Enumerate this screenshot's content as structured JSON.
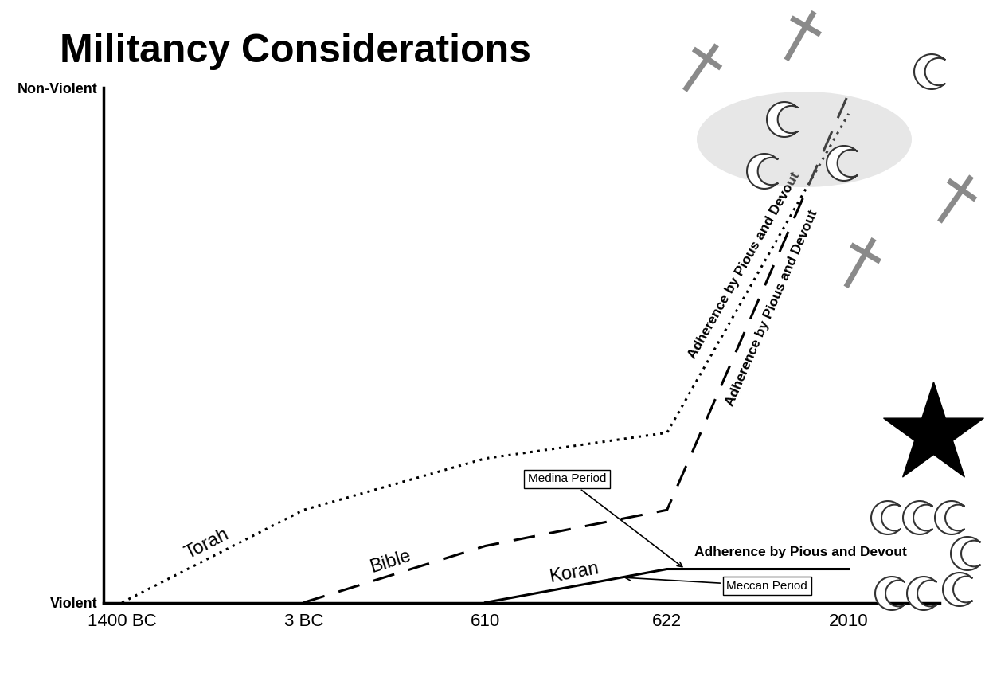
{
  "chart_data": {
    "type": "line",
    "title": "Militancy Considerations",
    "categories": [
      "1400 BC",
      "3 BC",
      "610",
      "622",
      "2010"
    ],
    "ylim": [
      0,
      10
    ],
    "yticks": [
      {
        "value": 0,
        "label": "Violent"
      },
      {
        "value": 10,
        "label": "Non-Violent"
      }
    ],
    "grid": false,
    "series": [
      {
        "name": "Torah",
        "color": "#000000",
        "line_style": "dotted",
        "values": [
          0,
          1.8,
          2.8,
          3.3,
          9.5
        ],
        "annotation": "Adherence by Pious and Devout"
      },
      {
        "name": "Bible",
        "color": "#000000",
        "line_style": "dashed",
        "values": [
          null,
          0,
          1.1,
          1.8,
          9.9
        ],
        "annotation": "Adherence by Pious and Devout"
      },
      {
        "name": "Koran",
        "color": "#000000",
        "line_style": "solid",
        "values": [
          null,
          null,
          0,
          0.65,
          0.65
        ],
        "annotation": "Adherence by Pious and Devout",
        "periods": [
          {
            "name": "Meccan Period",
            "from": "610",
            "to": "622"
          },
          {
            "name": "Medina Period",
            "from": "622",
            "to": "2010"
          }
        ]
      }
    ]
  }
}
